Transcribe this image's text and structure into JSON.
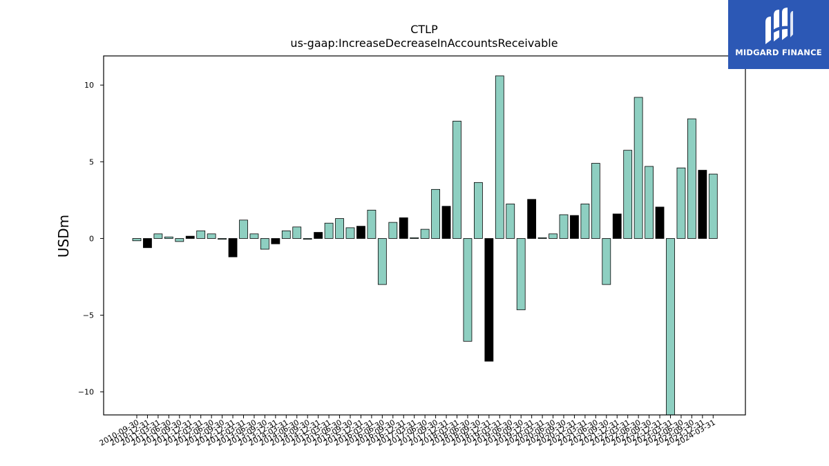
{
  "brand": {
    "name": "MIDGARD FINANCE",
    "colors": {
      "background": "#2c58b5",
      "foreground": "#ffffff"
    }
  },
  "chart_data": {
    "type": "bar",
    "title": "CTLP",
    "subtitle": "us-gaap:IncreaseDecreaseInAccountsReceivable",
    "ylabel": "USDm",
    "xlabel": "",
    "ylim": [
      -11.5,
      11.9
    ],
    "yticks": [
      -10,
      -5,
      0,
      5,
      10
    ],
    "ytick_labels": [
      "−10",
      "−5",
      "0",
      "5",
      "10"
    ],
    "grid": false,
    "colors": {
      "quarter": "#8ecfc1",
      "year_end_quarter": "#000000",
      "edge": "#000000"
    },
    "categories": [
      "2010-09-30",
      "2010-12-31",
      "2011-03-31",
      "2011-06-30",
      "2011-09-30",
      "2011-12-31",
      "2012-03-31",
      "2012-06-30",
      "2012-09-30",
      "2012-12-31",
      "2013-03-31",
      "2013-06-30",
      "2013-09-30",
      "2013-12-31",
      "2014-03-31",
      "2014-06-30",
      "2014-09-30",
      "2014-12-31",
      "2015-03-31",
      "2015-06-30",
      "2015-09-30",
      "2015-12-31",
      "2016-03-31",
      "2016-06-30",
      "2016-09-30",
      "2016-12-31",
      "2017-03-31",
      "2017-06-30",
      "2017-09-30",
      "2017-12-31",
      "2018-03-31",
      "2018-06-30",
      "2018-09-30",
      "2018-12-31",
      "2019-03-31",
      "2019-06-30",
      "2019-09-30",
      "2019-12-31",
      "2020-03-31",
      "2020-06-30",
      "2020-09-30",
      "2020-12-31",
      "2021-03-31",
      "2021-06-30",
      "2021-09-30",
      "2021-12-31",
      "2022-03-31",
      "2022-06-30",
      "2022-09-30",
      "2022-12-31",
      "2023-03-31",
      "2023-06-30",
      "2023-09-30",
      "2023-12-31",
      "2024-03-31"
    ],
    "tick_labels": [
      "2010-09-30",
      "2010-12-31",
      "2011-03-31",
      "2011-06-30",
      "2011-09-30",
      "2011-12-31",
      "2012-03-31",
      "2012-06-30",
      "2012-09-30",
      "2012-12-31",
      "2013-03-31",
      "2013-06-30",
      "2013-09-30",
      "2013-12-31",
      "2014-03-31",
      "2014-06-30",
      "2014-09-30",
      "2014-12-31",
      "2015-03-31",
      "2015-06-30",
      "2015-09-30",
      "2015-12-31",
      "2016-03-31",
      "2016-06-30",
      "2016-09-30",
      "2016-12-31",
      "2017-03-31",
      "2017-06-30",
      "2017-09-30",
      "2017-12-31",
      "2018-03-31",
      "2018-06-30",
      "2018-09-30",
      "2018-12-31",
      "2019-03-31",
      "2019-06-30",
      "2019-09-30",
      "2019-12-31",
      "2020-03-31",
      "2020-06-30",
      "2020-09-30",
      "2020-12-31",
      "2021-03-31",
      "2021-06-30",
      "2021-09-30",
      "2021-12-31",
      "2022-03-31",
      "2022-06-30",
      "2022-09-30",
      "2022-12-31",
      "2023-03-31",
      "2023-06-30",
      "2023-09-30",
      "2023-12-31",
      "2024-03-31"
    ],
    "values": [
      -0.15,
      -0.6,
      0.3,
      0.1,
      -0.2,
      0.15,
      0.5,
      0.3,
      -0.05,
      -1.2,
      1.2,
      0.3,
      -0.7,
      -0.35,
      0.5,
      0.75,
      -0.05,
      0.4,
      1.0,
      1.3,
      0.7,
      0.8,
      1.85,
      -3.0,
      1.05,
      1.35,
      0.05,
      0.6,
      3.2,
      2.1,
      7.65,
      -6.7,
      3.65,
      -8.0,
      10.6,
      2.25,
      -4.65,
      2.55,
      0.05,
      0.3,
      1.55,
      1.5,
      2.25,
      4.9,
      -3.0,
      1.6,
      5.75,
      9.2,
      4.7,
      2.05,
      -11.5,
      4.6,
      7.8,
      4.45,
      4.2
    ]
  }
}
